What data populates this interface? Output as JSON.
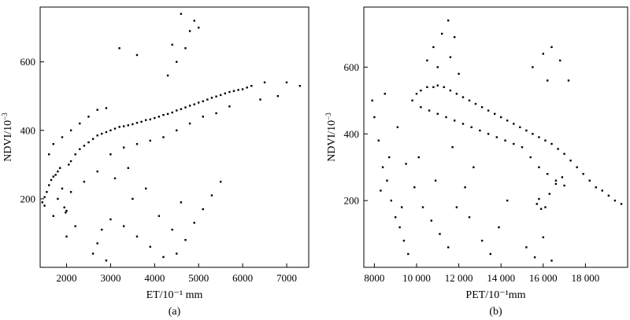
{
  "figure": {
    "panels": [
      {
        "panel_label": "(a)",
        "xlabel": "ET/10⁻¹ mm",
        "ylabel_main": "NDVI/10",
        "ylabel_exp": "−3"
      },
      {
        "panel_label": "(b)",
        "xlabel": "PET/10⁻¹mm",
        "ylabel_main": "NDVI/10",
        "ylabel_exp": "−3"
      }
    ]
  },
  "chart_data": [
    {
      "type": "scatter",
      "title": "",
      "panel_label": "(a)",
      "xlabel": "ET/10⁻¹ mm",
      "ylabel": "NDVI/10⁻³",
      "xlim": [
        1400,
        7500
      ],
      "ylim": [
        0,
        760
      ],
      "xticks": [
        2000,
        3000,
        4000,
        5000,
        6000,
        7000
      ],
      "xtick_labels": [
        "2000",
        "3000",
        "4000",
        "5000",
        "6000",
        "7000"
      ],
      "yticks": [
        200,
        400,
        600
      ],
      "ytick_labels": [
        "200",
        "400",
        "600"
      ],
      "grid": false,
      "marker_color": "#000000",
      "series": [
        {
          "points": [
            [
              1450,
              190
            ],
            [
              1500,
              205
            ],
            [
              1550,
              220
            ],
            [
              1600,
              240
            ],
            [
              1650,
              255
            ],
            [
              1700,
              265
            ],
            [
              1750,
              270
            ],
            [
              1800,
              280
            ],
            [
              1850,
              290
            ],
            [
              1900,
              230
            ],
            [
              1950,
              175
            ],
            [
              1980,
              160
            ],
            [
              2000,
              165
            ],
            [
              2050,
              300
            ],
            [
              2100,
              310
            ],
            [
              2200,
              330
            ],
            [
              2300,
              345
            ],
            [
              2400,
              355
            ],
            [
              2500,
              365
            ],
            [
              2600,
              375
            ],
            [
              2700,
              385
            ],
            [
              2800,
              390
            ],
            [
              2900,
              395
            ],
            [
              3000,
              400
            ],
            [
              3100,
              405
            ],
            [
              3200,
              410
            ],
            [
              3300,
              412
            ],
            [
              3400,
              415
            ],
            [
              3500,
              418
            ],
            [
              3600,
              422
            ],
            [
              3700,
              425
            ],
            [
              3800,
              430
            ],
            [
              3900,
              432
            ],
            [
              4000,
              436
            ],
            [
              4100,
              440
            ],
            [
              4200,
              445
            ],
            [
              4300,
              448
            ],
            [
              4400,
              452
            ],
            [
              4500,
              458
            ],
            [
              4600,
              462
            ],
            [
              4700,
              467
            ],
            [
              4800,
              472
            ],
            [
              4900,
              476
            ],
            [
              5000,
              481
            ],
            [
              5100,
              485
            ],
            [
              5200,
              490
            ],
            [
              5300,
              495
            ],
            [
              5400,
              499
            ],
            [
              5500,
              503
            ],
            [
              5600,
              508
            ],
            [
              5700,
              512
            ],
            [
              5800,
              515
            ],
            [
              5900,
              518
            ],
            [
              6000,
              520
            ],
            [
              6100,
              525
            ],
            [
              6200,
              530
            ],
            [
              6500,
              540
            ],
            [
              7000,
              540
            ],
            [
              7300,
              530
            ],
            [
              1600,
              330
            ],
            [
              1700,
              360
            ],
            [
              1900,
              380
            ],
            [
              2100,
              400
            ],
            [
              2300,
              420
            ],
            [
              2500,
              440
            ],
            [
              2700,
              460
            ],
            [
              2900,
              465
            ],
            [
              1800,
              200
            ],
            [
              2100,
              220
            ],
            [
              2400,
              250
            ],
            [
              2700,
              280
            ],
            [
              3000,
              330
            ],
            [
              3300,
              350
            ],
            [
              3600,
              360
            ],
            [
              3900,
              370
            ],
            [
              4200,
              380
            ],
            [
              4500,
              400
            ],
            [
              4800,
              420
            ],
            [
              5100,
              440
            ],
            [
              5400,
              450
            ],
            [
              5700,
              470
            ],
            [
              4300,
              560
            ],
            [
              4500,
              600
            ],
            [
              4700,
              640
            ],
            [
              4800,
              690
            ],
            [
              4900,
              720
            ],
            [
              4600,
              740
            ],
            [
              5000,
              700
            ],
            [
              4400,
              650
            ],
            [
              3600,
              620
            ],
            [
              3200,
              640
            ],
            [
              2600,
              40
            ],
            [
              2700,
              70
            ],
            [
              2800,
              110
            ],
            [
              3000,
              140
            ],
            [
              3300,
              120
            ],
            [
              3600,
              90
            ],
            [
              3900,
              60
            ],
            [
              4200,
              30
            ],
            [
              4500,
              40
            ],
            [
              4700,
              80
            ],
            [
              4900,
              130
            ],
            [
              5100,
              170
            ],
            [
              5300,
              210
            ],
            [
              5500,
              250
            ],
            [
              3500,
              200
            ],
            [
              3800,
              230
            ],
            [
              4100,
              150
            ],
            [
              4400,
              110
            ],
            [
              4600,
              190
            ],
            [
              2900,
              20
            ],
            [
              3100,
              260
            ],
            [
              3400,
              290
            ],
            [
              2200,
              120
            ],
            [
              2000,
              90
            ],
            [
              1700,
              150
            ],
            [
              1500,
              180
            ],
            [
              6400,
              490
            ],
            [
              6800,
              500
            ]
          ]
        }
      ]
    },
    {
      "type": "scatter",
      "title": "",
      "panel_label": "(b)",
      "xlabel": "PET/10⁻¹mm",
      "ylabel": "NDVI/10⁻³",
      "xlim": [
        7500,
        20000
      ],
      "ylim": [
        0,
        780
      ],
      "xticks": [
        8000,
        10000,
        12000,
        14000,
        16000,
        18000
      ],
      "xtick_labels": [
        "8000",
        "10 000",
        "12 000",
        "14 000",
        "16 000",
        "18 000"
      ],
      "yticks": [
        200,
        400,
        600
      ],
      "ytick_labels": [
        "200",
        "400",
        "600"
      ],
      "grid": false,
      "marker_color": "#000000",
      "series": [
        {
          "points": [
            [
              9800,
              500
            ],
            [
              10000,
              520
            ],
            [
              10200,
              530
            ],
            [
              10500,
              540
            ],
            [
              10800,
              540
            ],
            [
              11000,
              545
            ],
            [
              11300,
              540
            ],
            [
              11600,
              530
            ],
            [
              11900,
              520
            ],
            [
              12200,
              510
            ],
            [
              12500,
              500
            ],
            [
              12800,
              490
            ],
            [
              13100,
              480
            ],
            [
              13400,
              470
            ],
            [
              13700,
              460
            ],
            [
              14000,
              450
            ],
            [
              14300,
              440
            ],
            [
              14600,
              430
            ],
            [
              14900,
              420
            ],
            [
              15200,
              410
            ],
            [
              15500,
              400
            ],
            [
              15800,
              390
            ],
            [
              16100,
              380
            ],
            [
              16400,
              370
            ],
            [
              16700,
              355
            ],
            [
              17000,
              340
            ],
            [
              17300,
              320
            ],
            [
              17600,
              300
            ],
            [
              17900,
              280
            ],
            [
              18200,
              260
            ],
            [
              18500,
              240
            ],
            [
              18800,
              230
            ],
            [
              19100,
              215
            ],
            [
              19400,
              200
            ],
            [
              19700,
              190
            ],
            [
              15700,
              190
            ],
            [
              15900,
              175
            ],
            [
              16100,
              180
            ],
            [
              15800,
              205
            ],
            [
              16300,
              220
            ],
            [
              16600,
              250
            ],
            [
              16900,
              270
            ],
            [
              10200,
              480
            ],
            [
              10600,
              470
            ],
            [
              11000,
              460
            ],
            [
              11400,
              450
            ],
            [
              11800,
              440
            ],
            [
              12200,
              430
            ],
            [
              12600,
              420
            ],
            [
              13000,
              410
            ],
            [
              13400,
              400
            ],
            [
              13800,
              390
            ],
            [
              14200,
              380
            ],
            [
              14600,
              370
            ],
            [
              15000,
              360
            ],
            [
              15400,
              330
            ],
            [
              15800,
              300
            ],
            [
              16200,
              280
            ],
            [
              16600,
              260
            ],
            [
              17000,
              245
            ],
            [
              10500,
              620
            ],
            [
              10800,
              660
            ],
            [
              11200,
              700
            ],
            [
              11500,
              740
            ],
            [
              11800,
              690
            ],
            [
              11000,
              600
            ],
            [
              11600,
              630
            ],
            [
              12000,
              580
            ],
            [
              15500,
              600
            ],
            [
              16000,
              640
            ],
            [
              16400,
              660
            ],
            [
              16800,
              620
            ],
            [
              17200,
              560
            ],
            [
              16200,
              560
            ],
            [
              8000,
              450
            ],
            [
              8200,
              380
            ],
            [
              8400,
              300
            ],
            [
              8600,
              260
            ],
            [
              8800,
              200
            ],
            [
              9000,
              150
            ],
            [
              9200,
              120
            ],
            [
              9400,
              80
            ],
            [
              9600,
              40
            ],
            [
              8300,
              230
            ],
            [
              8700,
              330
            ],
            [
              9100,
              420
            ],
            [
              9500,
              310
            ],
            [
              9900,
              240
            ],
            [
              10300,
              180
            ],
            [
              10700,
              140
            ],
            [
              11100,
              100
            ],
            [
              11500,
              60
            ],
            [
              11900,
              180
            ],
            [
              12300,
              240
            ],
            [
              12700,
              300
            ],
            [
              13100,
              80
            ],
            [
              13500,
              40
            ],
            [
              13900,
              120
            ],
            [
              15200,
              60
            ],
            [
              15600,
              30
            ],
            [
              16000,
              90
            ],
            [
              16400,
              20
            ],
            [
              7900,
              500
            ],
            [
              8500,
              520
            ],
            [
              9300,
              180
            ],
            [
              10100,
              330
            ],
            [
              10900,
              260
            ],
            [
              11700,
              360
            ],
            [
              12500,
              150
            ],
            [
              14300,
              200
            ]
          ]
        }
      ]
    }
  ]
}
